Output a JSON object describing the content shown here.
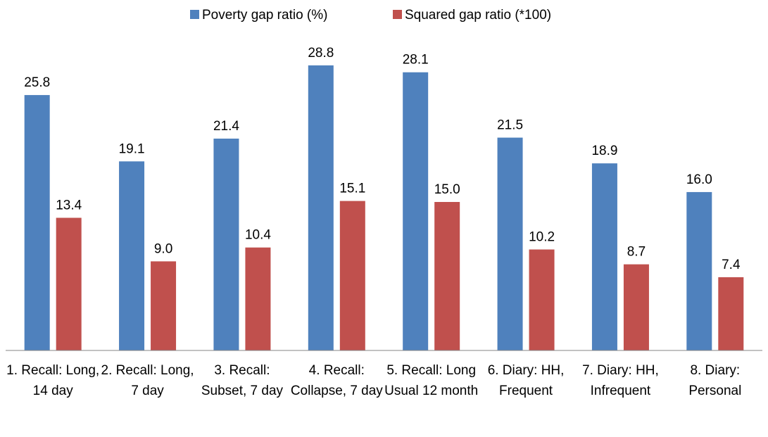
{
  "chart_data": {
    "type": "bar",
    "categories": [
      "1. Recall: Long, 14 day",
      "2. Recall: Long, 7 day",
      "3. Recall: Subset, 7 day",
      "4. Recall: Collapse, 7 day",
      "5. Recall: Long Usual 12 month",
      "6. Diary: HH, Frequent",
      "7. Diary: HH, Infrequent",
      "8. Diary: Personal"
    ],
    "series": [
      {
        "name": "Poverty gap ratio (%)",
        "color": "#4f81bd",
        "values": [
          25.8,
          19.1,
          21.4,
          28.8,
          28.1,
          21.5,
          18.9,
          16
        ],
        "value_labels": [
          "25.8",
          "19.1",
          "21.4",
          "28.8",
          "28.1",
          "21.5",
          "18.9",
          "16.0"
        ]
      },
      {
        "name": "Squared gap ratio (*100)",
        "color": "#c0504d",
        "values": [
          13.4,
          9,
          10.4,
          15.1,
          15,
          10.2,
          8.7,
          7.4
        ],
        "value_labels": [
          "13.4",
          "9.0",
          "10.4",
          "15.1",
          "15.0",
          "10.2",
          "8.7",
          "7.4"
        ]
      }
    ],
    "ylim": [
      0,
      30
    ],
    "legend": "top",
    "grid": false
  }
}
